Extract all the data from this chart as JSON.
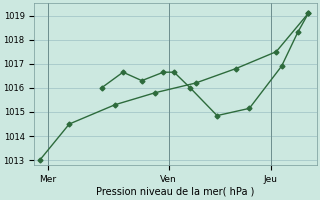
{
  "background_color": "#cce8e0",
  "grid_color": "#aacccc",
  "line_color": "#2d6b3c",
  "title": "Pression niveau de la mer( hPa )",
  "xlim": [
    0,
    10.5
  ],
  "ylim": [
    1012.8,
    1019.5
  ],
  "yticks": [
    1013,
    1014,
    1015,
    1016,
    1017,
    1018,
    1019
  ],
  "xtick_positions": [
    0.5,
    5.0,
    8.8
  ],
  "xtick_labels": [
    "Mer",
    "Ven",
    "Jeu"
  ],
  "vline_positions": [
    0.5,
    5.0,
    8.8
  ],
  "line1_x": [
    0.2,
    1.3,
    3.0,
    4.5,
    6.0,
    7.5,
    9.0,
    10.2
  ],
  "line1_y": [
    1013.0,
    1014.5,
    1015.3,
    1015.8,
    1016.2,
    1016.8,
    1017.5,
    1019.1
  ],
  "line2_x": [
    2.5,
    3.3,
    4.0,
    4.8,
    5.2,
    5.8,
    6.8,
    8.0,
    9.2,
    9.8,
    10.2
  ],
  "line2_y": [
    1016.0,
    1016.65,
    1016.3,
    1016.65,
    1016.65,
    1016.0,
    1014.85,
    1015.15,
    1016.9,
    1018.3,
    1019.1
  ],
  "figsize": [
    3.2,
    2.0
  ],
  "dpi": 100
}
